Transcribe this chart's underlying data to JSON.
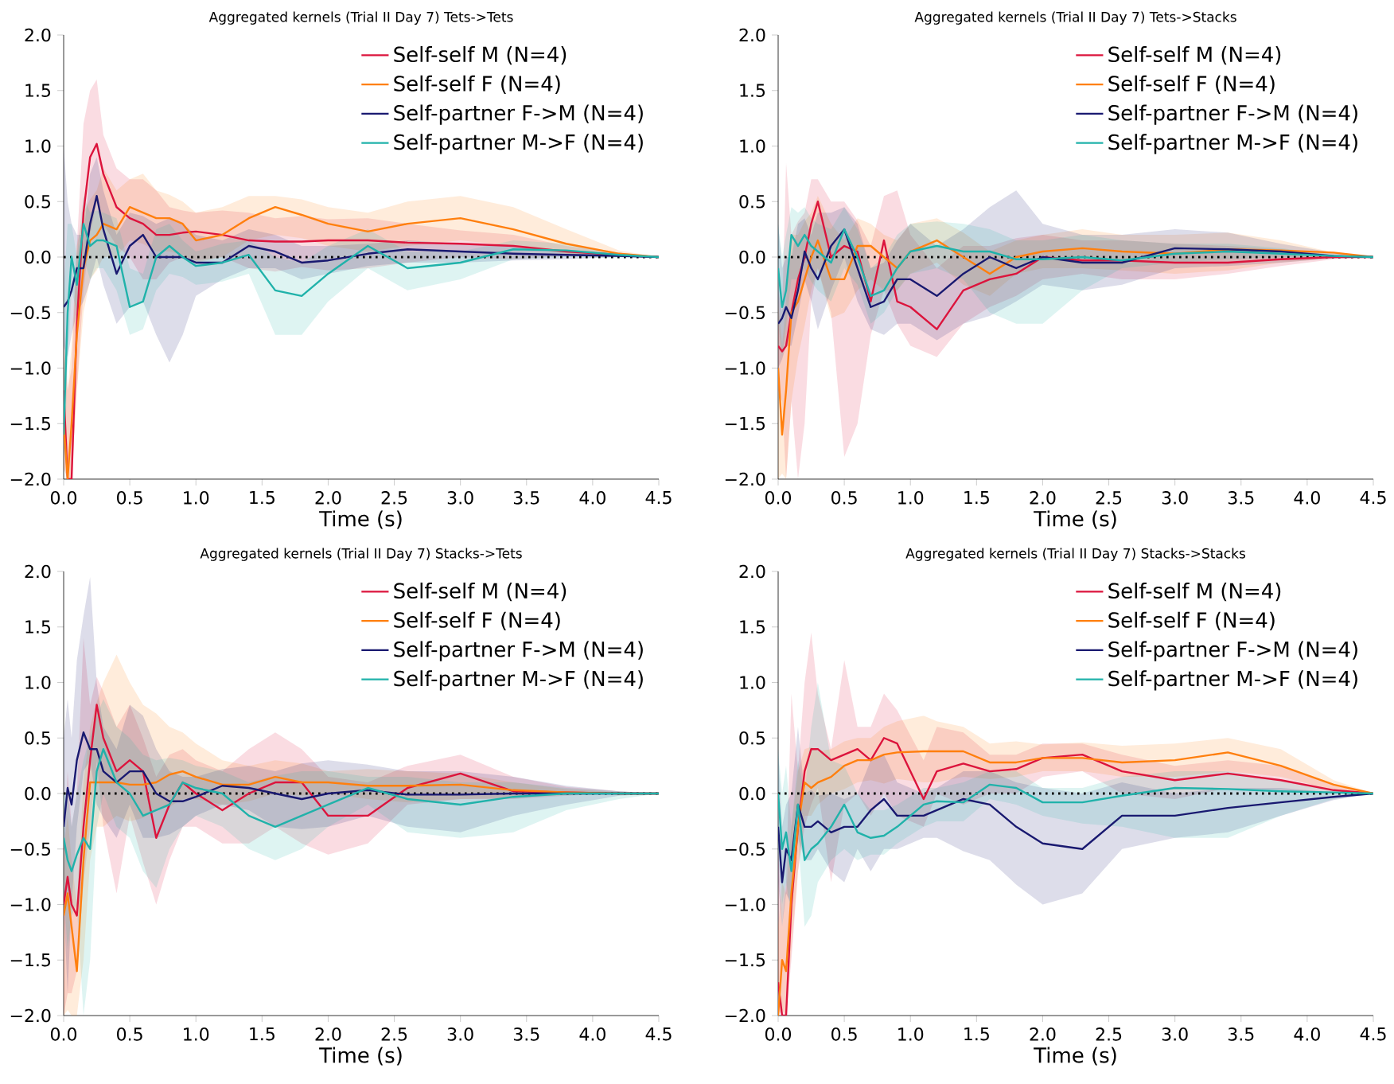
{
  "chart_data": [
    {
      "type": "line",
      "title": "Aggregated kernels (Trial II Day 7) Tets->Tets",
      "xlabel": "Time (s)",
      "xlim": [
        0,
        4.5
      ],
      "ylim": [
        -2,
        2
      ],
      "legend": "top right",
      "xticks": [
        {
          "value": 0,
          "label": "0.0"
        },
        {
          "value": 0.5,
          "label": "0.5"
        },
        {
          "value": 1,
          "label": "1.0"
        },
        {
          "value": 1.5,
          "label": "1.5"
        },
        {
          "value": 2,
          "label": "2.0"
        },
        {
          "value": 2.5,
          "label": "2.5"
        },
        {
          "value": 3,
          "label": "3.0"
        },
        {
          "value": 3.5,
          "label": "3.5"
        },
        {
          "value": 4,
          "label": "4.0"
        },
        {
          "value": 4.5,
          "label": "4.5"
        }
      ],
      "yticks": [
        {
          "value": -2,
          "label": "−2.0"
        },
        {
          "value": -1.5,
          "label": "−1.5"
        },
        {
          "value": -1,
          "label": "−1.0"
        },
        {
          "value": -0.5,
          "label": "−0.5"
        },
        {
          "value": 0,
          "label": "0.0"
        },
        {
          "value": 0.5,
          "label": "0.5"
        },
        {
          "value": 1,
          "label": "1.0"
        },
        {
          "value": 1.5,
          "label": "1.5"
        },
        {
          "value": 2,
          "label": "2.0"
        }
      ],
      "ref_lines": [
        {
          "axis": "y",
          "value": 0,
          "label": null,
          "color": "#000000",
          "line_style": "dotted"
        }
      ],
      "x": [
        0,
        0.03,
        0.06,
        0.1,
        0.15,
        0.2,
        0.25,
        0.3,
        0.4,
        0.5,
        0.6,
        0.7,
        0.8,
        0.9,
        1.0,
        1.2,
        1.4,
        1.6,
        1.8,
        2.0,
        2.3,
        2.6,
        3.0,
        3.4,
        3.8,
        4.2,
        4.5
      ],
      "series": [
        {
          "name": "Self-self M (N=4)",
          "color": "#dc143c",
          "values": [
            -1.2,
            -2,
            -2,
            -0.6,
            0.4,
            0.9,
            1.02,
            0.75,
            0.45,
            0.35,
            0.3,
            0.2,
            0.2,
            0.22,
            0.23,
            0.2,
            0.15,
            0.14,
            0.14,
            0.15,
            0.15,
            0.13,
            0.12,
            0.1,
            0.05,
            0.02,
            0
          ],
          "lower": [
            -1.9,
            -2,
            -2,
            -1.2,
            -0.3,
            0.2,
            0.5,
            0.3,
            0.1,
            0,
            -0.2,
            -0.2,
            -0.05,
            0,
            -0.03,
            0,
            -0.1,
            -0.13,
            -0.09,
            -0.12,
            -0.1,
            -0.05,
            0,
            -0.02,
            0.01,
            0,
            0
          ],
          "upper": [
            -0.5,
            -1.2,
            -1,
            0.1,
            1.2,
            1.5,
            1.6,
            1.1,
            0.8,
            0.7,
            0.7,
            0.6,
            0.45,
            0.42,
            0.4,
            0.42,
            0.4,
            0.35,
            0.37,
            0.34,
            0.35,
            0.3,
            0.24,
            0.2,
            0.1,
            0.04,
            0
          ]
        },
        {
          "name": "Self-self F (N=4)",
          "color": "#ff7f0e",
          "values": [
            -1.5,
            -2,
            -1.5,
            -0.7,
            -0.1,
            0.15,
            0.2,
            0.3,
            0.25,
            0.45,
            0.4,
            0.35,
            0.35,
            0.3,
            0.15,
            0.2,
            0.35,
            0.45,
            0.38,
            0.3,
            0.23,
            0.3,
            0.35,
            0.25,
            0.12,
            0.03,
            0
          ],
          "lower": [
            -1.9,
            -2,
            -2,
            -1.2,
            -0.5,
            -0.2,
            -0.12,
            0,
            0,
            0.15,
            0.12,
            0.05,
            0.05,
            0.02,
            -0.05,
            0,
            0.15,
            0.2,
            0.17,
            0.1,
            0.05,
            0.1,
            0.15,
            0.1,
            0.03,
            0,
            0
          ],
          "upper": [
            -0.8,
            -1.2,
            -0.8,
            0.1,
            0.4,
            0.52,
            0.6,
            0.8,
            0.6,
            0.7,
            0.75,
            0.6,
            0.56,
            0.5,
            0.4,
            0.45,
            0.55,
            0.55,
            0.52,
            0.45,
            0.4,
            0.5,
            0.55,
            0.45,
            0.25,
            0.06,
            0
          ]
        },
        {
          "name": "Self-partner F->M (N=4)",
          "color": "#191970",
          "values": [
            -0.45,
            -0.4,
            -0.3,
            -0.1,
            -0.1,
            0.3,
            0.55,
            0.25,
            -0.15,
            0.1,
            0.2,
            0,
            0,
            0,
            -0.05,
            -0.05,
            0.1,
            0.05,
            -0.05,
            -0.03,
            0.03,
            0.07,
            0.05,
            0.03,
            0.02,
            0.01,
            0
          ],
          "lower": [
            -0.8,
            -0.9,
            -0.7,
            -0.5,
            -0.4,
            -0.22,
            0,
            -0.25,
            -0.6,
            -0.45,
            -0.4,
            -0.7,
            -0.95,
            -0.7,
            -0.35,
            -0.2,
            -0.1,
            -0.1,
            -0.2,
            -0.15,
            -0.08,
            -0.05,
            -0.05,
            -0.03,
            -0.02,
            0,
            0
          ],
          "upper": [
            1.0,
            0.5,
            0.3,
            0.2,
            0.2,
            0.75,
            0.9,
            0.6,
            0.2,
            0.4,
            0.37,
            0.3,
            0.35,
            0.3,
            0.2,
            0.15,
            0.25,
            0.2,
            0.1,
            0.1,
            0.12,
            0.15,
            0.12,
            0.1,
            0.06,
            0.03,
            0
          ]
        },
        {
          "name": "Self-partner M->F (N=4)",
          "color": "#20b2aa",
          "values": [
            -1.6,
            -0.5,
            0,
            -0.25,
            0.3,
            0.1,
            0.15,
            0.15,
            0.1,
            -0.45,
            -0.4,
            0,
            0.1,
            0,
            -0.08,
            -0.05,
            0.02,
            -0.3,
            -0.35,
            -0.15,
            0.1,
            -0.1,
            -0.05,
            0.07,
            0.06,
            0.02,
            0
          ],
          "lower": [
            -2,
            -1,
            -0.3,
            -0.5,
            0,
            -0.2,
            -0.1,
            -0.1,
            -0.3,
            -0.7,
            -0.65,
            -0.3,
            -0.15,
            -0.18,
            -0.25,
            -0.22,
            -0.15,
            -0.7,
            -0.7,
            -0.4,
            -0.1,
            -0.3,
            -0.2,
            -0.02,
            0,
            -0.01,
            0
          ],
          "upper": [
            -0.3,
            0.3,
            0.3,
            0,
            0.55,
            0.4,
            0.42,
            0.4,
            0.35,
            -0.1,
            -0.15,
            0.25,
            0.3,
            0.15,
            0.05,
            0.12,
            0.15,
            0,
            -0.05,
            0.1,
            0.25,
            0.05,
            0.05,
            0.15,
            0.12,
            0.04,
            0
          ]
        }
      ]
    },
    {
      "type": "line",
      "title": "Aggregated kernels (Trial II Day 7) Tets->Stacks",
      "xlabel": "Time (s)",
      "xlim": [
        0,
        4.5
      ],
      "ylim": [
        -2,
        2
      ],
      "legend": "top right",
      "xticks": [
        {
          "value": 0,
          "label": "0.0"
        },
        {
          "value": 0.5,
          "label": "0.5"
        },
        {
          "value": 1,
          "label": "1.0"
        },
        {
          "value": 1.5,
          "label": "1.5"
        },
        {
          "value": 2,
          "label": "2.0"
        },
        {
          "value": 2.5,
          "label": "2.5"
        },
        {
          "value": 3,
          "label": "3.0"
        },
        {
          "value": 3.5,
          "label": "3.5"
        },
        {
          "value": 4,
          "label": "4.0"
        },
        {
          "value": 4.5,
          "label": "4.5"
        }
      ],
      "yticks": [
        {
          "value": -2,
          "label": "−2.0"
        },
        {
          "value": -1.5,
          "label": "−1.5"
        },
        {
          "value": -1,
          "label": "−1.0"
        },
        {
          "value": -0.5,
          "label": "−0.5"
        },
        {
          "value": 0,
          "label": "0.0"
        },
        {
          "value": 0.5,
          "label": "0.5"
        },
        {
          "value": 1,
          "label": "1.0"
        },
        {
          "value": 1.5,
          "label": "1.5"
        },
        {
          "value": 2,
          "label": "2.0"
        }
      ],
      "ref_lines": [
        {
          "axis": "y",
          "value": 0,
          "label": null,
          "color": "#000000",
          "line_style": "dotted"
        }
      ],
      "x": [
        0,
        0.03,
        0.06,
        0.1,
        0.15,
        0.2,
        0.25,
        0.3,
        0.4,
        0.5,
        0.6,
        0.7,
        0.8,
        0.9,
        1.0,
        1.2,
        1.4,
        1.6,
        1.8,
        2.0,
        2.3,
        2.6,
        3.0,
        3.4,
        3.8,
        4.2,
        4.5
      ],
      "series": [
        {
          "name": "Self-self M (N=4)",
          "color": "#dc143c",
          "values": [
            -0.8,
            -0.85,
            -0.8,
            -0.5,
            -0.2,
            0,
            0.3,
            0.5,
            0,
            0.1,
            0.05,
            -0.4,
            0.15,
            -0.4,
            -0.45,
            -0.65,
            -0.3,
            -0.2,
            -0.15,
            0,
            -0.03,
            -0.03,
            -0.05,
            -0.05,
            -0.02,
            0,
            0
          ],
          "lower": [
            -1.2,
            -1.3,
            -2,
            -1.3,
            -2,
            -1.5,
            -0.4,
            -0.1,
            -0.5,
            -1.8,
            -1.5,
            -0.7,
            -0.3,
            -0.6,
            -0.8,
            -0.9,
            -0.6,
            -0.45,
            -0.35,
            -0.2,
            -0.15,
            -0.2,
            -0.2,
            -0.15,
            -0.08,
            -0.02,
            0
          ],
          "upper": [
            -0.3,
            -0.5,
            0.85,
            0.2,
            0.32,
            0.4,
            0.7,
            0.7,
            0.5,
            0.5,
            0.33,
            0.1,
            0.55,
            0.6,
            0.2,
            -0.1,
            0.1,
            0.1,
            0.17,
            0.2,
            0.15,
            0.15,
            0.12,
            0.1,
            0.07,
            0.02,
            0
          ]
        },
        {
          "name": "Self-self F (N=4)",
          "color": "#ff7f0e",
          "values": [
            -1.0,
            -1.6,
            -1.2,
            -0.5,
            -0.4,
            -0.2,
            0,
            0.15,
            -0.2,
            -0.2,
            0.1,
            0.1,
            0,
            -0.1,
            0.05,
            0.15,
            0,
            -0.15,
            0,
            0.05,
            0.08,
            0.05,
            0.03,
            0.07,
            0.06,
            0.04,
            0
          ],
          "lower": [
            -2,
            -1.95,
            -2,
            -1.3,
            -0.9,
            -0.62,
            -0.3,
            -0.1,
            -0.55,
            -0.5,
            -0.3,
            -0.2,
            -0.3,
            -0.3,
            -0.15,
            -0.05,
            -0.25,
            -0.35,
            -0.15,
            -0.1,
            -0.1,
            -0.12,
            -0.15,
            -0.12,
            -0.05,
            -0.01,
            0
          ],
          "upper": [
            -0.4,
            -0.8,
            -0.4,
            0.2,
            0.2,
            0.32,
            0.4,
            0.55,
            0.3,
            0.15,
            0.35,
            0.3,
            0.2,
            0.15,
            0.3,
            0.35,
            0.22,
            0.05,
            0.15,
            0.2,
            0.25,
            0.2,
            0.2,
            0.22,
            0.15,
            0.04,
            0
          ]
        },
        {
          "name": "Self-partner F->M (N=4)",
          "color": "#191970",
          "values": [
            -0.6,
            -0.55,
            -0.45,
            -0.55,
            -0.3,
            0.05,
            -0.1,
            -0.2,
            0.1,
            0.25,
            -0.1,
            -0.45,
            -0.4,
            -0.2,
            -0.2,
            -0.35,
            -0.15,
            0,
            -0.1,
            0,
            -0.05,
            -0.05,
            0.08,
            0.07,
            0.05,
            0.01,
            0
          ],
          "lower": [
            -1,
            -0.92,
            -0.8,
            -0.8,
            -0.52,
            -0.2,
            -0.4,
            -0.65,
            -0.3,
            0,
            -0.4,
            -0.65,
            -0.7,
            -0.6,
            -0.6,
            -0.75,
            -0.6,
            -0.53,
            -0.4,
            -0.25,
            -0.3,
            -0.25,
            -0.1,
            -0.08,
            -0.05,
            -0.01,
            0
          ],
          "upper": [
            0.3,
            -0.1,
            0,
            0,
            0.3,
            0.35,
            0.2,
            0.4,
            0.4,
            0.45,
            0.3,
            -0.1,
            -0.05,
            0.15,
            0.3,
            0.1,
            0.25,
            0.45,
            0.6,
            0.3,
            0.2,
            0.2,
            0.25,
            0.22,
            0.12,
            0.04,
            0
          ]
        },
        {
          "name": "Self-partner M->F (N=4)",
          "color": "#20b2aa",
          "values": [
            -0.1,
            -0.45,
            -0.3,
            0.2,
            0.1,
            0.2,
            0.1,
            0.05,
            -0.05,
            0.25,
            0,
            -0.35,
            -0.3,
            -0.1,
            0.05,
            0.1,
            0.05,
            0.05,
            -0.02,
            -0.02,
            0,
            -0.03,
            0.03,
            0.05,
            0.03,
            0.01,
            0
          ],
          "lower": [
            -0.6,
            -0.9,
            -0.62,
            -0.2,
            -0.2,
            -0.1,
            -0.22,
            -0.3,
            -0.4,
            -0.1,
            -0.25,
            -0.6,
            -0.5,
            -0.3,
            -0.15,
            -0.1,
            -0.2,
            -0.5,
            -0.6,
            -0.6,
            -0.3,
            -0.1,
            -0.05,
            -0.02,
            0,
            -0.01,
            0
          ],
          "upper": [
            0.3,
            0,
            0.2,
            0.45,
            0.4,
            0.45,
            0.35,
            0.3,
            0.25,
            0.45,
            0.25,
            -0.1,
            0,
            0.2,
            0.3,
            0.32,
            0.3,
            0.25,
            0.15,
            0.15,
            0.2,
            0.15,
            0.12,
            0.12,
            0.08,
            0.02,
            0
          ]
        }
      ]
    },
    {
      "type": "line",
      "title": "Aggregated kernels (Trial II Day 7) Stacks->Tets",
      "xlabel": "Time (s)",
      "xlim": [
        0,
        4.5
      ],
      "ylim": [
        -2,
        2
      ],
      "legend": "top right",
      "xticks": [
        {
          "value": 0,
          "label": "0.0"
        },
        {
          "value": 0.5,
          "label": "0.5"
        },
        {
          "value": 1,
          "label": "1.0"
        },
        {
          "value": 1.5,
          "label": "1.5"
        },
        {
          "value": 2,
          "label": "2.0"
        },
        {
          "value": 2.5,
          "label": "2.5"
        },
        {
          "value": 3,
          "label": "3.0"
        },
        {
          "value": 3.5,
          "label": "3.5"
        },
        {
          "value": 4,
          "label": "4.0"
        },
        {
          "value": 4.5,
          "label": "4.5"
        }
      ],
      "yticks": [
        {
          "value": -2,
          "label": "−2.0"
        },
        {
          "value": -1.5,
          "label": "−1.5"
        },
        {
          "value": -1,
          "label": "−1.0"
        },
        {
          "value": -0.5,
          "label": "−0.5"
        },
        {
          "value": 0,
          "label": "0.0"
        },
        {
          "value": 0.5,
          "label": "0.5"
        },
        {
          "value": 1,
          "label": "1.0"
        },
        {
          "value": 1.5,
          "label": "1.5"
        },
        {
          "value": 2,
          "label": "2.0"
        }
      ],
      "ref_lines": [
        {
          "axis": "y",
          "value": 0,
          "label": null,
          "color": "#000000",
          "line_style": "dotted"
        }
      ],
      "x": [
        0,
        0.03,
        0.06,
        0.1,
        0.15,
        0.2,
        0.25,
        0.3,
        0.4,
        0.5,
        0.6,
        0.7,
        0.8,
        0.9,
        1.0,
        1.2,
        1.4,
        1.6,
        1.8,
        2.0,
        2.3,
        2.6,
        3.0,
        3.4,
        3.8,
        4.2,
        4.5
      ],
      "series": [
        {
          "name": "Self-self M (N=4)",
          "color": "#dc143c",
          "values": [
            -1.0,
            -0.75,
            -1.0,
            -1.1,
            -0.3,
            0.3,
            0.8,
            0.5,
            0.2,
            0.3,
            0.2,
            -0.4,
            -0.1,
            0.1,
            0,
            -0.15,
            0,
            0.1,
            0.1,
            -0.2,
            -0.2,
            0.05,
            0.18,
            0.02,
            0.01,
            0,
            0
          ],
          "lower": [
            -2,
            -1.8,
            -1.8,
            -1.6,
            -0.8,
            -0.3,
            0.3,
            -0.3,
            -0.9,
            -0.2,
            -0.62,
            -1,
            -0.6,
            -0.3,
            -0.3,
            -0.45,
            -0.45,
            -0.3,
            -0.45,
            -0.55,
            -0.45,
            -0.1,
            -0.05,
            -0.05,
            -0.02,
            0,
            0
          ],
          "upper": [
            -0.5,
            0.2,
            -0.3,
            0,
            1.4,
            0.8,
            1.05,
            0.92,
            0.6,
            0.8,
            0.5,
            0.15,
            0.35,
            0.4,
            0.3,
            0.2,
            0.4,
            0.55,
            0.4,
            0.15,
            0.1,
            0.25,
            0.35,
            0.15,
            0.06,
            0.02,
            0
          ]
        },
        {
          "name": "Self-self F (N=4)",
          "color": "#ff7f0e",
          "values": [
            -1.1,
            -0.9,
            -1.2,
            -1.6,
            -0.6,
            0.1,
            0.1,
            0.1,
            0.1,
            0.08,
            0.08,
            0.1,
            0.17,
            0.2,
            0.15,
            0.08,
            0.08,
            0.15,
            0.1,
            0.1,
            0.07,
            0.07,
            0.08,
            0.03,
            0.01,
            0,
            0
          ],
          "lower": [
            -2,
            -1.95,
            -2,
            -2,
            -1.5,
            -0.6,
            -0.3,
            -0.3,
            -0.2,
            -0.25,
            -0.22,
            -0.15,
            -0.12,
            -0.05,
            -0.05,
            -0.1,
            -0.07,
            0,
            -0.02,
            0,
            -0.05,
            -0.08,
            -0.05,
            -0.04,
            -0.01,
            0,
            0
          ],
          "upper": [
            -0.5,
            -0.2,
            -0.6,
            -1,
            0.1,
            0.6,
            0.82,
            1.0,
            1.25,
            1.0,
            0.8,
            0.72,
            0.6,
            0.55,
            0.45,
            0.3,
            0.25,
            0.3,
            0.27,
            0.2,
            0.22,
            0.2,
            0.18,
            0.1,
            0.04,
            0.01,
            0
          ]
        },
        {
          "name": "Self-partner F->M (N=4)",
          "color": "#191970",
          "values": [
            -0.3,
            0.05,
            -0.1,
            0.3,
            0.55,
            0.4,
            0.4,
            0.2,
            0.1,
            0.2,
            0.2,
            0,
            -0.07,
            -0.07,
            -0.03,
            0.07,
            0.05,
            0,
            -0.05,
            0,
            0.03,
            -0.01,
            -0.01,
            0,
            0,
            0,
            0
          ],
          "lower": [
            -1,
            -1.8,
            -1,
            -0.3,
            0.2,
            0.3,
            -0.1,
            -0.22,
            -0.4,
            -0.1,
            -0.4,
            -0.4,
            -0.37,
            -0.3,
            -0.2,
            -0.1,
            -0.15,
            -0.3,
            -0.32,
            -0.3,
            -0.2,
            -0.3,
            -0.35,
            -0.2,
            -0.1,
            -0.02,
            0
          ],
          "upper": [
            0.5,
            0.85,
            0.5,
            1.2,
            1.6,
            1.95,
            1.0,
            0.6,
            0.4,
            0.8,
            0.7,
            0.4,
            0.2,
            0.15,
            0.15,
            0.22,
            0.25,
            0.2,
            0.27,
            0.3,
            0.26,
            0.2,
            0.2,
            0.15,
            0.07,
            0.02,
            0
          ]
        },
        {
          "name": "Self-partner M->F (N=4)",
          "color": "#20b2aa",
          "values": [
            -0.4,
            -0.6,
            -0.7,
            -0.55,
            -0.4,
            -0.5,
            0.2,
            0.4,
            0.1,
            0,
            -0.2,
            -0.15,
            -0.1,
            0.1,
            0.05,
            0,
            -0.2,
            -0.3,
            -0.2,
            -0.1,
            0.05,
            -0.05,
            -0.1,
            -0.03,
            0,
            0,
            0
          ],
          "lower": [
            -0.9,
            -1.4,
            -1.1,
            -1,
            -2,
            -1.5,
            -0.3,
            0,
            -0.3,
            -0.4,
            -0.7,
            -0.85,
            -0.5,
            -0.3,
            -0.2,
            -0.3,
            -0.5,
            -0.6,
            -0.5,
            -0.3,
            -0.1,
            -0.35,
            -0.4,
            -0.35,
            -0.15,
            -0.05,
            0
          ],
          "upper": [
            0,
            0,
            -0.3,
            0,
            0.3,
            0.52,
            0.7,
            0.85,
            0.6,
            0.5,
            0.35,
            0.3,
            0.32,
            0.3,
            0.25,
            0.2,
            0.1,
            0.16,
            0.2,
            0.2,
            0.15,
            0.15,
            0.1,
            0.1,
            0.05,
            0.02,
            0
          ]
        }
      ]
    },
    {
      "type": "line",
      "title": "Aggregated kernels (Trial II Day 7) Stacks->Stacks",
      "xlabel": "Time (s)",
      "xlim": [
        0,
        4.5
      ],
      "ylim": [
        -2,
        2
      ],
      "legend": "top right",
      "xticks": [
        {
          "value": 0,
          "label": "0.0"
        },
        {
          "value": 0.5,
          "label": "0.5"
        },
        {
          "value": 1,
          "label": "1.0"
        },
        {
          "value": 1.5,
          "label": "1.5"
        },
        {
          "value": 2,
          "label": "2.0"
        },
        {
          "value": 2.5,
          "label": "2.5"
        },
        {
          "value": 3,
          "label": "3.0"
        },
        {
          "value": 3.5,
          "label": "3.5"
        },
        {
          "value": 4,
          "label": "4.0"
        },
        {
          "value": 4.5,
          "label": "4.5"
        }
      ],
      "yticks": [
        {
          "value": -2,
          "label": "−2.0"
        },
        {
          "value": -1.5,
          "label": "−1.5"
        },
        {
          "value": -1,
          "label": "−1.0"
        },
        {
          "value": -0.5,
          "label": "−0.5"
        },
        {
          "value": 0,
          "label": "0.0"
        },
        {
          "value": 0.5,
          "label": "0.5"
        },
        {
          "value": 1,
          "label": "1.0"
        },
        {
          "value": 1.5,
          "label": "1.5"
        },
        {
          "value": 2,
          "label": "2.0"
        }
      ],
      "ref_lines": [
        {
          "axis": "y",
          "value": 0,
          "label": null,
          "color": "#000000",
          "line_style": "dotted"
        }
      ],
      "x": [
        0,
        0.03,
        0.06,
        0.1,
        0.15,
        0.2,
        0.25,
        0.3,
        0.4,
        0.5,
        0.6,
        0.7,
        0.8,
        0.9,
        1.1,
        1.2,
        1.4,
        1.6,
        1.8,
        2.0,
        2.3,
        2.6,
        3.0,
        3.4,
        3.8,
        4.2,
        4.5
      ],
      "series": [
        {
          "name": "Self-self M (N=4)",
          "color": "#dc143c",
          "values": [
            -1.7,
            -2,
            -2,
            -1,
            -0.3,
            0.2,
            0.4,
            0.4,
            0.3,
            0.35,
            0.4,
            0.3,
            0.5,
            0.45,
            -0.05,
            0.2,
            0.27,
            0.2,
            0.22,
            0.32,
            0.35,
            0.2,
            0.12,
            0.18,
            0.12,
            0.03,
            0
          ],
          "lower": [
            -1.95,
            -2,
            -2,
            -1.5,
            -0.7,
            -0.3,
            -0.1,
            0.05,
            -0.8,
            -0.1,
            0,
            -0.2,
            0,
            -0.2,
            -0.3,
            0,
            -0.1,
            0,
            0,
            0.15,
            0.2,
            0,
            -0.05,
            0.05,
            0.03,
            0,
            0
          ],
          "upper": [
            -0.5,
            -1.2,
            -0.8,
            0.9,
            0.2,
            1.0,
            1.45,
            0.9,
            0.4,
            1.2,
            0.6,
            0.6,
            0.9,
            0.75,
            0.3,
            0.6,
            0.55,
            0.35,
            0.35,
            0.45,
            0.45,
            0.35,
            0.25,
            0.3,
            0.25,
            0.07,
            0
          ]
        },
        {
          "name": "Self-self F (N=4)",
          "color": "#ff7f0e",
          "values": [
            -2,
            -1.5,
            -1.6,
            -0.9,
            -0.3,
            0.1,
            0.05,
            0.1,
            0.15,
            0.25,
            0.3,
            0.3,
            0.35,
            0.37,
            0.38,
            0.38,
            0.38,
            0.28,
            0.28,
            0.32,
            0.32,
            0.28,
            0.3,
            0.37,
            0.25,
            0.08,
            0
          ],
          "lower": [
            -2,
            -1.95,
            -2,
            -1.4,
            -0.7,
            -0.2,
            -0.2,
            -0.1,
            0,
            0.04,
            0.1,
            0.12,
            0.09,
            0.13,
            0.1,
            0.1,
            0.15,
            0.13,
            0.15,
            0.2,
            0.2,
            0.15,
            0.15,
            0.2,
            0.15,
            0.03,
            0
          ],
          "upper": [
            -1.2,
            -0.8,
            -0.9,
            -0.3,
            0.2,
            0.4,
            0.42,
            0.38,
            0.4,
            0.47,
            0.5,
            0.5,
            0.6,
            0.65,
            0.7,
            0.65,
            0.6,
            0.45,
            0.47,
            0.44,
            0.46,
            0.43,
            0.45,
            0.5,
            0.4,
            0.12,
            0
          ]
        },
        {
          "name": "Self-partner F->M (N=4)",
          "color": "#191970",
          "values": [
            -0.3,
            -0.8,
            -0.5,
            -0.6,
            -0.1,
            -0.3,
            -0.3,
            -0.25,
            -0.35,
            -0.3,
            -0.3,
            -0.15,
            -0.05,
            -0.2,
            -0.2,
            -0.15,
            -0.05,
            -0.1,
            -0.3,
            -0.45,
            -0.5,
            -0.2,
            -0.2,
            -0.13,
            -0.08,
            -0.03,
            0
          ],
          "lower": [
            -0.8,
            -1.2,
            -0.9,
            -1,
            -0.4,
            -0.6,
            -0.6,
            -0.5,
            -0.7,
            -0.8,
            -0.5,
            -0.7,
            -0.5,
            -0.5,
            -0.4,
            -0.4,
            -0.52,
            -0.6,
            -0.82,
            -1.0,
            -0.9,
            -0.5,
            -0.4,
            -0.35,
            -0.2,
            -0.06,
            0
          ],
          "upper": [
            0.4,
            -0.3,
            -0.1,
            0,
            0.6,
            0,
            0.03,
            -0.02,
            0,
            -0.05,
            0,
            0.3,
            0.35,
            0.1,
            0,
            0.05,
            0.2,
            0.2,
            0.1,
            0.05,
            0,
            0.1,
            0,
            0.05,
            0.05,
            0.01,
            0
          ]
        },
        {
          "name": "Self-partner M->F (N=4)",
          "color": "#20b2aa",
          "values": [
            0,
            -0.5,
            -0.35,
            -0.7,
            -0.1,
            -0.6,
            -0.5,
            -0.45,
            -0.3,
            -0.1,
            -0.35,
            -0.4,
            -0.38,
            -0.3,
            -0.1,
            -0.07,
            -0.08,
            0.08,
            0.05,
            -0.08,
            -0.08,
            -0.02,
            0.05,
            0.04,
            0.02,
            0.01,
            0
          ],
          "lower": [
            -0.5,
            -1,
            -0.8,
            -1.1,
            -0.4,
            -1.2,
            -1.1,
            -0.8,
            -0.6,
            -0.5,
            -0.6,
            -0.55,
            -0.55,
            -0.45,
            -0.3,
            -0.25,
            -0.25,
            -0.05,
            -0.1,
            -0.2,
            -0.27,
            -0.3,
            -0.4,
            -0.4,
            -0.2,
            -0.05,
            0
          ],
          "upper": [
            0.4,
            0,
            0.25,
            -0.3,
            0.3,
            0,
            0.6,
            1.0,
            0.3,
            0.25,
            0,
            -0.15,
            -0.15,
            -0.1,
            0.05,
            0.05,
            0.1,
            0.2,
            0.2,
            0.05,
            0.05,
            0.15,
            0.2,
            0.2,
            0.12,
            0.03,
            0
          ]
        }
      ]
    }
  ]
}
